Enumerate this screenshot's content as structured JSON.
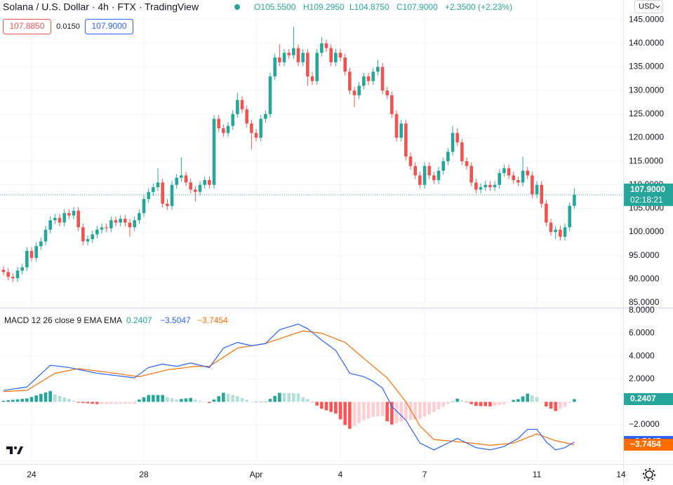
{
  "header": {
    "title": "Solana / U.S. Dollar · 4h · FTX · TradingView",
    "open": "O105.5500",
    "high": "H109.2950",
    "low": "L104.8750",
    "close": "C107.9000",
    "change": "+2.3500 (+2.23%)",
    "bid": "107.8850",
    "spread": "0.0150",
    "ask": "107.9000",
    "currency": "USD"
  },
  "chart_data": [
    {
      "type": "candlestick",
      "categories": [
        null,
        null,
        null,
        null,
        null,
        null,
        "24",
        null,
        null,
        null,
        null,
        null,
        null,
        null,
        null,
        null,
        null,
        null,
        null,
        null,
        null,
        null,
        null,
        null,
        null,
        null,
        null,
        null,
        null,
        null,
        "28",
        null,
        null,
        null,
        null,
        null,
        null,
        null,
        null,
        null,
        null,
        null,
        null,
        null,
        null,
        null,
        null,
        null,
        null,
        null,
        null,
        null,
        null,
        null,
        "Apr",
        null,
        null,
        null,
        null,
        null,
        null,
        null,
        null,
        null,
        null,
        null,
        null,
        null,
        null,
        null,
        null,
        null,
        "4",
        null,
        null,
        null,
        null,
        null,
        null,
        null,
        null,
        null,
        null,
        null,
        null,
        null,
        null,
        null,
        null,
        null,
        "7",
        null,
        null,
        null,
        null,
        null,
        null,
        null,
        null,
        null,
        null,
        null,
        null,
        null,
        null,
        null,
        null,
        null,
        null,
        null,
        null,
        null,
        null,
        null,
        "11",
        null,
        null,
        null,
        null,
        null,
        null,
        null,
        null,
        null,
        null,
        null,
        null,
        null,
        null,
        null,
        null,
        null,
        "14"
      ],
      "open": [
        92,
        91.5,
        90.5,
        90.2,
        91.8,
        92.5,
        96,
        94.5,
        97,
        98,
        100.5,
        102.5,
        103,
        102,
        104,
        103.5,
        104.5,
        101,
        98,
        98.5,
        99.5,
        100.5,
        101,
        100.8,
        102.5,
        102,
        102.8,
        102,
        101,
        102.5,
        104,
        107,
        108.5,
        109.5,
        110.5,
        106,
        105.5,
        110,
        111.5,
        112,
        110.5,
        109,
        108.5,
        110,
        111,
        110,
        124,
        122,
        121,
        122.5,
        125,
        128,
        126,
        123,
        121,
        120,
        124,
        125,
        133,
        137,
        136,
        138,
        137.5,
        139,
        136,
        138,
        133,
        132,
        138,
        140,
        139,
        136,
        138,
        137,
        134,
        130,
        129,
        131,
        133,
        132,
        134,
        135,
        130,
        129,
        125,
        120,
        123,
        116,
        114,
        112,
        110,
        114,
        112,
        111,
        113,
        115,
        117,
        121,
        119,
        115,
        114,
        110.5,
        109,
        109.5,
        110,
        109.5,
        110,
        112.5,
        113.5,
        112,
        111,
        110.5,
        113,
        112,
        108,
        110,
        106,
        102,
        100,
        100.5,
        99,
        101,
        105.55,
        null,
        null,
        null,
        null,
        null,
        null,
        null,
        null,
        null,
        null
      ],
      "high": [
        92.8,
        92.3,
        91.3,
        92.6,
        93.3,
        96.8,
        96.8,
        97.8,
        98.8,
        101.3,
        103.3,
        103.8,
        103.8,
        104.8,
        104.8,
        105.3,
        105.3,
        101.8,
        99.3,
        100.3,
        101.3,
        101.8,
        101.8,
        103.3,
        103.3,
        103.6,
        103.6,
        102.8,
        103.3,
        104.8,
        107.8,
        109.3,
        110.3,
        113.5,
        111.3,
        107,
        110.8,
        112.3,
        115.8,
        112.8,
        111.3,
        109.8,
        110.8,
        111.8,
        111.8,
        124.8,
        124.8,
        122.8,
        123.3,
        125.8,
        129.5,
        128.8,
        126.8,
        123.8,
        121.8,
        124.8,
        125.8,
        133.8,
        137.8,
        139.8,
        138.8,
        138.8,
        143.5,
        139.8,
        138.8,
        138.8,
        134,
        138.8,
        141.3,
        140.8,
        139.8,
        138.8,
        138.8,
        137.8,
        134.8,
        130.8,
        131.8,
        133.8,
        133.8,
        134.8,
        136.5,
        135.8,
        130.8,
        129.8,
        125.8,
        123.8,
        123.8,
        116.8,
        114.8,
        112.8,
        114.8,
        114.8,
        112.8,
        113.8,
        115.8,
        117.8,
        122.5,
        122,
        119.8,
        115.8,
        114.8,
        111.3,
        110.3,
        110.8,
        110.8,
        110.8,
        113.3,
        114.3,
        114.3,
        112.8,
        111.8,
        116,
        113.8,
        112.8,
        110.8,
        110.8,
        106.8,
        102.8,
        101.3,
        101.3,
        101.8,
        106.3,
        109.295,
        null,
        null,
        null,
        null,
        null,
        null,
        null,
        null,
        null,
        null
      ],
      "low": [
        90.8,
        89.7,
        89.4,
        89.4,
        91,
        91.7,
        93.7,
        93.7,
        96.2,
        97.2,
        99.7,
        101.7,
        101.2,
        101.2,
        102.7,
        102.7,
        100.2,
        97.2,
        97.2,
        97.7,
        98.7,
        99.7,
        100,
        100,
        101.2,
        101.2,
        101.2,
        99,
        100.2,
        101.7,
        103.2,
        106.2,
        107.7,
        108.7,
        105.2,
        104.7,
        104.7,
        109.2,
        110.7,
        109.7,
        108.2,
        106.5,
        107.7,
        109.2,
        109.2,
        109.2,
        121.2,
        120.2,
        120.2,
        121.7,
        124.2,
        125.2,
        122.2,
        117.5,
        119.2,
        119.2,
        123.2,
        124.2,
        132.2,
        135.2,
        135.2,
        136.7,
        136.7,
        135.2,
        135.2,
        131,
        131.2,
        131.2,
        137.2,
        138.2,
        135.2,
        135.2,
        136.2,
        133.2,
        129.2,
        126.5,
        128.2,
        130.2,
        131.2,
        131.2,
        133.2,
        129.2,
        128.2,
        124.2,
        119.2,
        119.2,
        115.2,
        113.2,
        111.2,
        109.2,
        109.2,
        111.2,
        110.2,
        110.2,
        112.2,
        114.2,
        116.2,
        118.2,
        114.2,
        113.2,
        109.7,
        108.2,
        108.2,
        108.7,
        108.7,
        108.7,
        109.2,
        111.7,
        111.2,
        110.2,
        109.7,
        109.7,
        111.2,
        107.2,
        107.2,
        105.2,
        101.2,
        99.2,
        98.5,
        98.2,
        98.2,
        100.2,
        104.875,
        null,
        null,
        null,
        null,
        null,
        null,
        null,
        null,
        null,
        null
      ],
      "close": [
        91.5,
        90.5,
        90.2,
        91.8,
        92.5,
        96,
        94.5,
        97,
        98,
        100.5,
        102.5,
        103,
        102,
        104,
        103.5,
        104.5,
        101,
        98,
        98.5,
        99.5,
        100.5,
        101,
        100.8,
        102.5,
        102,
        102.8,
        102,
        101,
        102.5,
        104,
        107,
        108.5,
        109.5,
        110.5,
        106,
        105.5,
        110,
        111.5,
        112,
        110.5,
        109,
        108.5,
        110,
        111,
        110,
        124,
        122,
        121,
        122.5,
        125,
        128,
        126,
        123,
        121,
        120,
        124,
        125,
        133,
        137,
        136,
        138,
        137.5,
        139,
        136,
        138,
        133,
        132,
        138,
        140,
        139,
        136,
        138,
        137,
        134,
        130,
        129,
        131,
        133,
        132,
        134,
        135,
        130,
        129,
        125,
        120,
        123,
        116,
        114,
        112,
        110,
        114,
        112,
        111,
        113,
        115,
        117,
        121,
        119,
        115,
        114,
        110.5,
        109,
        109.5,
        110,
        109.5,
        110,
        112.5,
        113.5,
        112,
        111,
        110.5,
        113,
        112,
        108,
        110,
        106,
        102,
        100,
        100.5,
        99,
        101,
        105.55,
        107.9,
        null,
        null,
        null,
        null,
        null,
        null,
        null,
        null,
        null,
        null
      ],
      "up_color": "#26a69a",
      "down_color": "#ef5350",
      "last_label": "107.9000",
      "countdown": "02:18:21",
      "ylim": [
        84.1,
        149.2
      ],
      "yticks": [
        {
          "value": 145,
          "label": "145.0000"
        },
        {
          "value": 140,
          "label": "140.0000"
        },
        {
          "value": 135,
          "label": "135.0000"
        },
        {
          "value": 130,
          "label": "130.0000"
        },
        {
          "value": 125,
          "label": "125.0000"
        },
        {
          "value": 120,
          "label": "120.0000"
        },
        {
          "value": 115,
          "label": "115.0000"
        },
        {
          "value": 110,
          "label": "110.0000"
        },
        {
          "value": 105,
          "label": "105.0000"
        },
        {
          "value": 100,
          "label": "100.0000"
        },
        {
          "value": 95,
          "label": "95.0000"
        },
        {
          "value": 90,
          "label": "90.0000"
        },
        {
          "value": 85,
          "label": "85.0000"
        }
      ],
      "grid": true
    },
    {
      "type": "macd",
      "title": "MACD 12 26 close 9 EMA EMA",
      "legend_values": [
        "0.2407",
        "−3.5047",
        "−3.7454"
      ],
      "histogram": [
        0.1,
        0.14,
        0.18,
        0.22,
        0.26,
        0.3,
        0.43,
        0.56,
        0.69,
        0.82,
        0.95,
        0.65,
        0.52,
        0.39,
        0.26,
        0.1,
        -0.07,
        -0.1,
        -0.13,
        -0.17,
        -0.2,
        -0.2,
        -0.2,
        -0.19,
        -0.19,
        -0.18,
        -0.17,
        -0.16,
        -0.16,
        0.2,
        0.4,
        0.6,
        0.6,
        0.6,
        0.6,
        0.43,
        0.32,
        0.2,
        0.25,
        0.3,
        0.35,
        0.2,
        0.1,
        0,
        -0.1,
        0.2,
        0.5,
        0.8,
        0.7,
        0.6,
        0.5,
        0.33,
        0.17,
        0,
        0,
        0,
        0,
        0.26,
        0.52,
        0.79,
        0.78,
        0.76,
        0.75,
        0.74,
        0.4,
        0.25,
        -0.03,
        -0.32,
        -0.6,
        -0.74,
        -0.88,
        -1.02,
        -1.53,
        -2.03,
        -2.35,
        -2.1,
        -1.85,
        -1.6,
        -1.46,
        -1.32,
        -1.28,
        -1.24,
        -1.7,
        -1.98,
        -1.85,
        -1.73,
        -1.6,
        -1.57,
        -1.53,
        -1.5,
        -1.3,
        -1.1,
        -0.9,
        -0.67,
        -0.43,
        -0.2,
        0.04,
        0.28,
        0.12,
        -0.04,
        -0.2,
        -0.35,
        -0.37,
        -0.38,
        -0.4,
        -0.34,
        -0.28,
        -0.22,
        -0.03,
        0.17,
        0.24,
        0.48,
        0.72,
        0.56,
        0.4,
        0,
        -0.4,
        -0.6,
        -0.8,
        -0.61,
        -0.43,
        -0.09,
        0.2407
      ],
      "macd": [
        1.0,
        1.06,
        1.12,
        1.18,
        1.24,
        1.3,
        1.68,
        2.06,
        2.44,
        2.82,
        3.2,
        3.15,
        3.1,
        3.05,
        3.0,
        2.92,
        2.83,
        2.75,
        2.67,
        2.58,
        2.5,
        2.45,
        2.4,
        2.35,
        2.3,
        2.25,
        2.2,
        2.15,
        2.1,
        2.4,
        2.7,
        3.0,
        3.1,
        3.2,
        3.3,
        3.23,
        3.17,
        3.1,
        3.2,
        3.3,
        3.4,
        3.3,
        3.2,
        3.1,
        3.0,
        3.57,
        4.13,
        4.7,
        4.87,
        5.03,
        5.2,
        5.1,
        5.0,
        4.9,
        4.97,
        5.03,
        5.1,
        5.5,
        5.9,
        6.3,
        6.43,
        6.55,
        6.68,
        6.8,
        6.6,
        6.4,
        6.07,
        5.73,
        5.4,
        5.1,
        4.8,
        4.5,
        3.83,
        3.17,
        2.5,
        2.4,
        2.3,
        2.2,
        2.0,
        1.8,
        1.5,
        1.2,
        0.4,
        -0.4,
        -0.8,
        -1.2,
        -1.6,
        -2.27,
        -2.93,
        -3.6,
        -3.8,
        -4.0,
        -4.2,
        -4.0,
        -3.8,
        -3.6,
        -3.4,
        -3.2,
        -3.4,
        -3.6,
        -3.8,
        -4.0,
        -4.07,
        -4.13,
        -4.2,
        -4.1,
        -4.0,
        -3.9,
        -3.67,
        -3.43,
        -3.2,
        -2.8,
        -2.4,
        -2.4,
        -2.4,
        -2.95,
        -3.5,
        -3.85,
        -4.2,
        -4.1,
        -4.0,
        -3.75,
        -3.5047
      ],
      "signal": [
        0.9,
        0.92,
        0.94,
        0.96,
        0.98,
        1.0,
        1.25,
        1.5,
        1.75,
        2.0,
        2.25,
        2.5,
        2.58,
        2.66,
        2.74,
        2.82,
        2.9,
        2.85,
        2.8,
        2.75,
        2.7,
        2.65,
        2.6,
        2.54,
        2.49,
        2.43,
        2.37,
        2.31,
        2.26,
        2.2,
        2.3,
        2.4,
        2.5,
        2.6,
        2.7,
        2.8,
        2.85,
        2.9,
        2.95,
        3.0,
        3.05,
        3.1,
        3.1,
        3.1,
        3.1,
        3.37,
        3.63,
        3.9,
        4.17,
        4.43,
        4.7,
        4.77,
        4.83,
        4.9,
        4.97,
        5.03,
        5.1,
        5.24,
        5.38,
        5.51,
        5.65,
        5.79,
        5.93,
        6.06,
        6.2,
        6.15,
        6.1,
        6.05,
        6.0,
        5.84,
        5.68,
        5.52,
        5.36,
        5.2,
        4.85,
        4.5,
        4.15,
        3.8,
        3.46,
        3.12,
        2.78,
        2.44,
        2.1,
        1.58,
        1.05,
        0.53,
        0,
        -0.7,
        -1.4,
        -2.1,
        -2.5,
        -2.9,
        -3.3,
        -3.33,
        -3.37,
        -3.4,
        -3.44,
        -3.48,
        -3.52,
        -3.56,
        -3.6,
        -3.65,
        -3.7,
        -3.75,
        -3.8,
        -3.76,
        -3.72,
        -3.68,
        -3.64,
        -3.6,
        -3.44,
        -3.28,
        -3.12,
        -2.96,
        -2.8,
        -2.95,
        -3.1,
        -3.25,
        -3.4,
        -3.49,
        -3.57,
        -3.66,
        -3.7454
      ],
      "histogram_colors": [
        "#26a69a",
        "#b2dfdb",
        "#ff5252",
        "#ffcdd2"
      ],
      "macd_color": "#2962ff",
      "signal_color": "#ff6d00",
      "ylim": [
        -5.43,
        8.11
      ],
      "yticks": [
        {
          "value": 8,
          "label": "8.0000"
        },
        {
          "value": 6,
          "label": "6.0000"
        },
        {
          "value": 4,
          "label": "4.0000"
        },
        {
          "value": 2,
          "label": "2.0000"
        },
        {
          "value": -2,
          "label": "−2.0000"
        }
      ],
      "grid": true
    }
  ]
}
